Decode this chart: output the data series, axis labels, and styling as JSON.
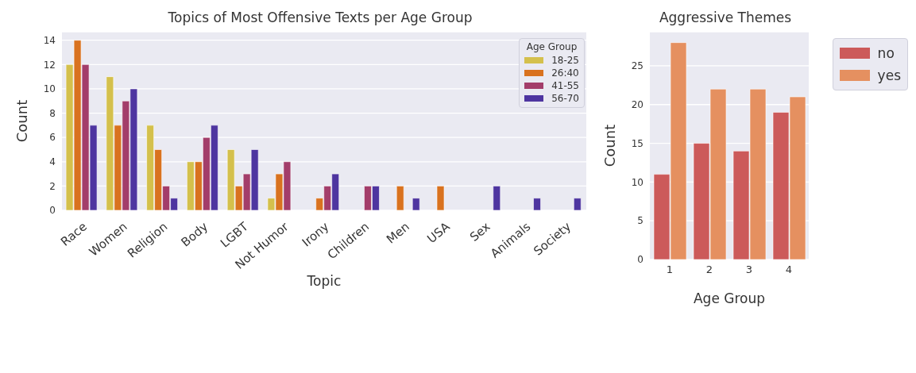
{
  "chart_data": [
    {
      "type": "bar",
      "title": "Topics of Most Offensive Texts per Age Group",
      "xlabel": "Topic",
      "ylabel": "Count",
      "legend_title": "Age Group",
      "categories": [
        "Race",
        "Women",
        "Religion",
        "Body",
        "LGBT",
        "Not Humor",
        "Irony",
        "Children",
        "Men",
        "USA",
        "Sex",
        "Animals",
        "Society"
      ],
      "series": [
        {
          "name": "18-25",
          "color": "#d4c04c",
          "values": [
            12,
            11,
            7,
            4,
            5,
            1,
            0,
            0,
            0,
            0,
            0,
            0,
            0
          ]
        },
        {
          "name": "26:40",
          "color": "#d9721f",
          "values": [
            14,
            7,
            5,
            4,
            2,
            3,
            1,
            0,
            2,
            2,
            0,
            0,
            0
          ]
        },
        {
          "name": "41-55",
          "color": "#a33d6a",
          "values": [
            12,
            9,
            2,
            6,
            3,
            4,
            2,
            2,
            0,
            0,
            0,
            0,
            0
          ]
        },
        {
          "name": "56-70",
          "color": "#4e35a0",
          "values": [
            7,
            10,
            1,
            7,
            5,
            0,
            3,
            2,
            1,
            0,
            2,
            1,
            1
          ]
        }
      ],
      "ylim": [
        0,
        14.7
      ],
      "yticks": [
        0,
        2,
        4,
        6,
        8,
        10,
        12,
        14
      ],
      "grid": "y",
      "legend": "top right"
    },
    {
      "type": "bar",
      "title": "Aggressive Themes",
      "xlabel": "Age Group",
      "ylabel": "Count",
      "categories": [
        "1",
        "2",
        "3",
        "4"
      ],
      "series": [
        {
          "name": "no",
          "color": "#cc5a5a",
          "values": [
            11,
            15,
            14,
            19
          ]
        },
        {
          "name": "yes",
          "color": "#e59060",
          "values": [
            28,
            22,
            22,
            21
          ]
        }
      ],
      "ylim": [
        0,
        29.4
      ],
      "yticks": [
        0,
        5,
        10,
        15,
        20,
        25
      ],
      "grid": "y",
      "legend": "right"
    }
  ]
}
